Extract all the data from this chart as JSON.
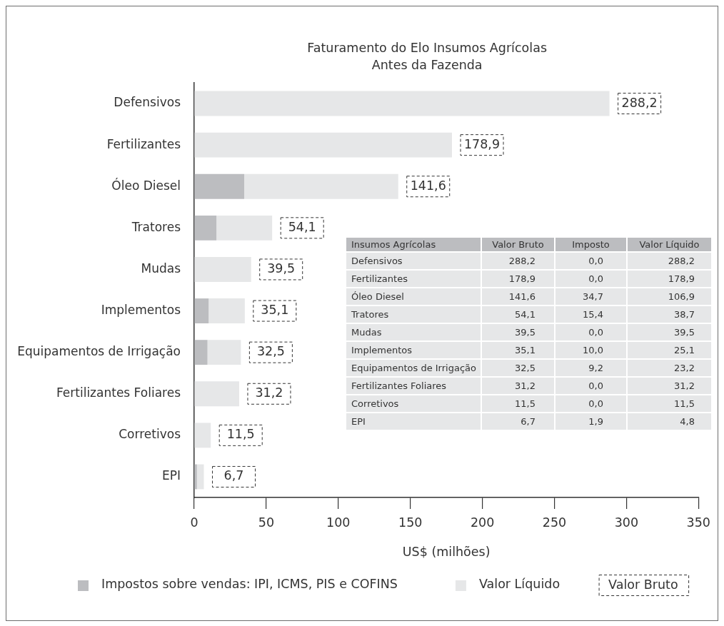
{
  "chart_data": {
    "type": "bar",
    "orientation": "horizontal",
    "stacked": true,
    "title": "Faturamento do Elo Insumos Agrícolas",
    "subtitle": "Antes da Fazenda",
    "xlabel": "US$ (milhões)",
    "categories": [
      "Defensivos",
      "Fertilizantes",
      "Óleo Diesel",
      "Tratores",
      "Mudas",
      "Implementos",
      "Equipamentos de Irrigação",
      "Fertilizantes Foliares",
      "Corretivos",
      "EPI"
    ],
    "series": [
      {
        "name": "Impostos sobre vendas: IPI, ICMS, PIS e COFINS",
        "color": "#bcbdc0",
        "values": [
          0,
          0,
          34.7,
          15.4,
          0,
          10,
          9.2,
          0,
          0,
          1.9
        ]
      },
      {
        "name": "Valor Líquido",
        "color": "#e6e7e8",
        "values": [
          288.2,
          178.9,
          106.9,
          38.7,
          39.5,
          25.1,
          23.2,
          31.2,
          11.5,
          4.8
        ]
      }
    ],
    "totals": [
      "288,2",
      "178,9",
      "141,6",
      "54,1",
      "39,5",
      "35,1",
      "32,5",
      "31,2",
      "11,5",
      "6,7"
    ],
    "xlim": [
      0,
      350
    ],
    "xticks": [
      0,
      50,
      100,
      150,
      200,
      250,
      300,
      350
    ],
    "legend": "bottom",
    "annotations": [
      "Valor Bruto",
      "Insumos Agrícolas",
      "Valor Bruto",
      "Imposto",
      "Valor Líquido",
      "0,0",
      "288,2",
      "0,0",
      "178,9",
      "34,7",
      "106,9",
      "15,4",
      "38,7",
      "0,0",
      "39,5",
      "10,0",
      "25,1",
      "9,2",
      "23,2",
      "0,0",
      "31,2",
      "0,0",
      "11,5",
      "1,9",
      "4,8"
    ]
  }
}
